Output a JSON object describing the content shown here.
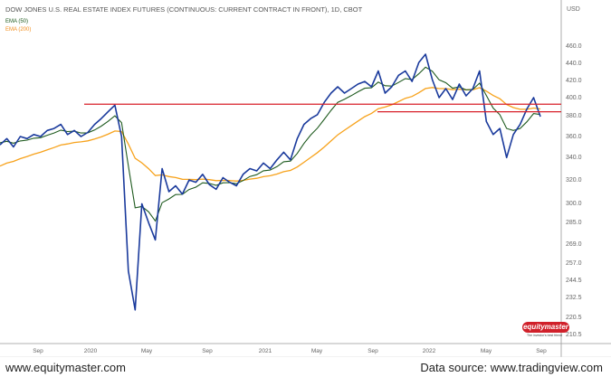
{
  "chart_data": {
    "type": "line",
    "title": "DOW JONES U.S. REAL ESTATE INDEX FUTURES (CONTINUOUS: CURRENT CONTRACT IN FRONT), 1D, CBOT",
    "currency": "USD",
    "legend": [
      "EMA (50)",
      "EMA (200)"
    ],
    "x_ticks": [
      "Sep",
      "2020",
      "May",
      "Sep",
      "2021",
      "May",
      "Sep",
      "2022",
      "May",
      "Sep"
    ],
    "y_ticks": [
      "460.0",
      "440.0",
      "420.0",
      "400.0",
      "380.0",
      "360.0",
      "340.0",
      "320.0",
      "300.0",
      "285.0",
      "269.0",
      "257.0",
      "244.5",
      "232.5",
      "220.5",
      "210.5"
    ],
    "y_tick_values": [
      460,
      440,
      420,
      400,
      380,
      360,
      340,
      320,
      300,
      285,
      269,
      257,
      244.5,
      232.5,
      220.5,
      210.5
    ],
    "scale": "log",
    "period": "semi-monthly approx, Jun 2019 - Sep 2022",
    "price": [
      352,
      358,
      350,
      360,
      358,
      362,
      360,
      366,
      368,
      372,
      362,
      366,
      360,
      364,
      372,
      378,
      385,
      392,
      360,
      250,
      225,
      300,
      285,
      272,
      330,
      310,
      315,
      308,
      320,
      318,
      325,
      316,
      312,
      322,
      318,
      315,
      325,
      330,
      328,
      335,
      330,
      338,
      345,
      338,
      358,
      372,
      378,
      382,
      395,
      405,
      412,
      405,
      410,
      415,
      418,
      412,
      430,
      405,
      412,
      425,
      430,
      418,
      440,
      450,
      420,
      400,
      410,
      398,
      415,
      402,
      410,
      430,
      375,
      362,
      368,
      340,
      362,
      372,
      388,
      400,
      380
    ],
    "ema_seed": {
      "ema50": 355,
      "ema200": 330
    },
    "resistance_levels": [
      393,
      385
    ],
    "colors": {
      "price": "#1a3a9c",
      "ema50": "#1e5a1e",
      "ema200": "#f7a21b",
      "levels": "#d8202a"
    }
  },
  "footer": {
    "left": "www.equitymaster.com",
    "right": "Data source: www.tradingview.com"
  },
  "logo": {
    "name": "equitymaster",
    "tagline": "The investor's best friend"
  }
}
